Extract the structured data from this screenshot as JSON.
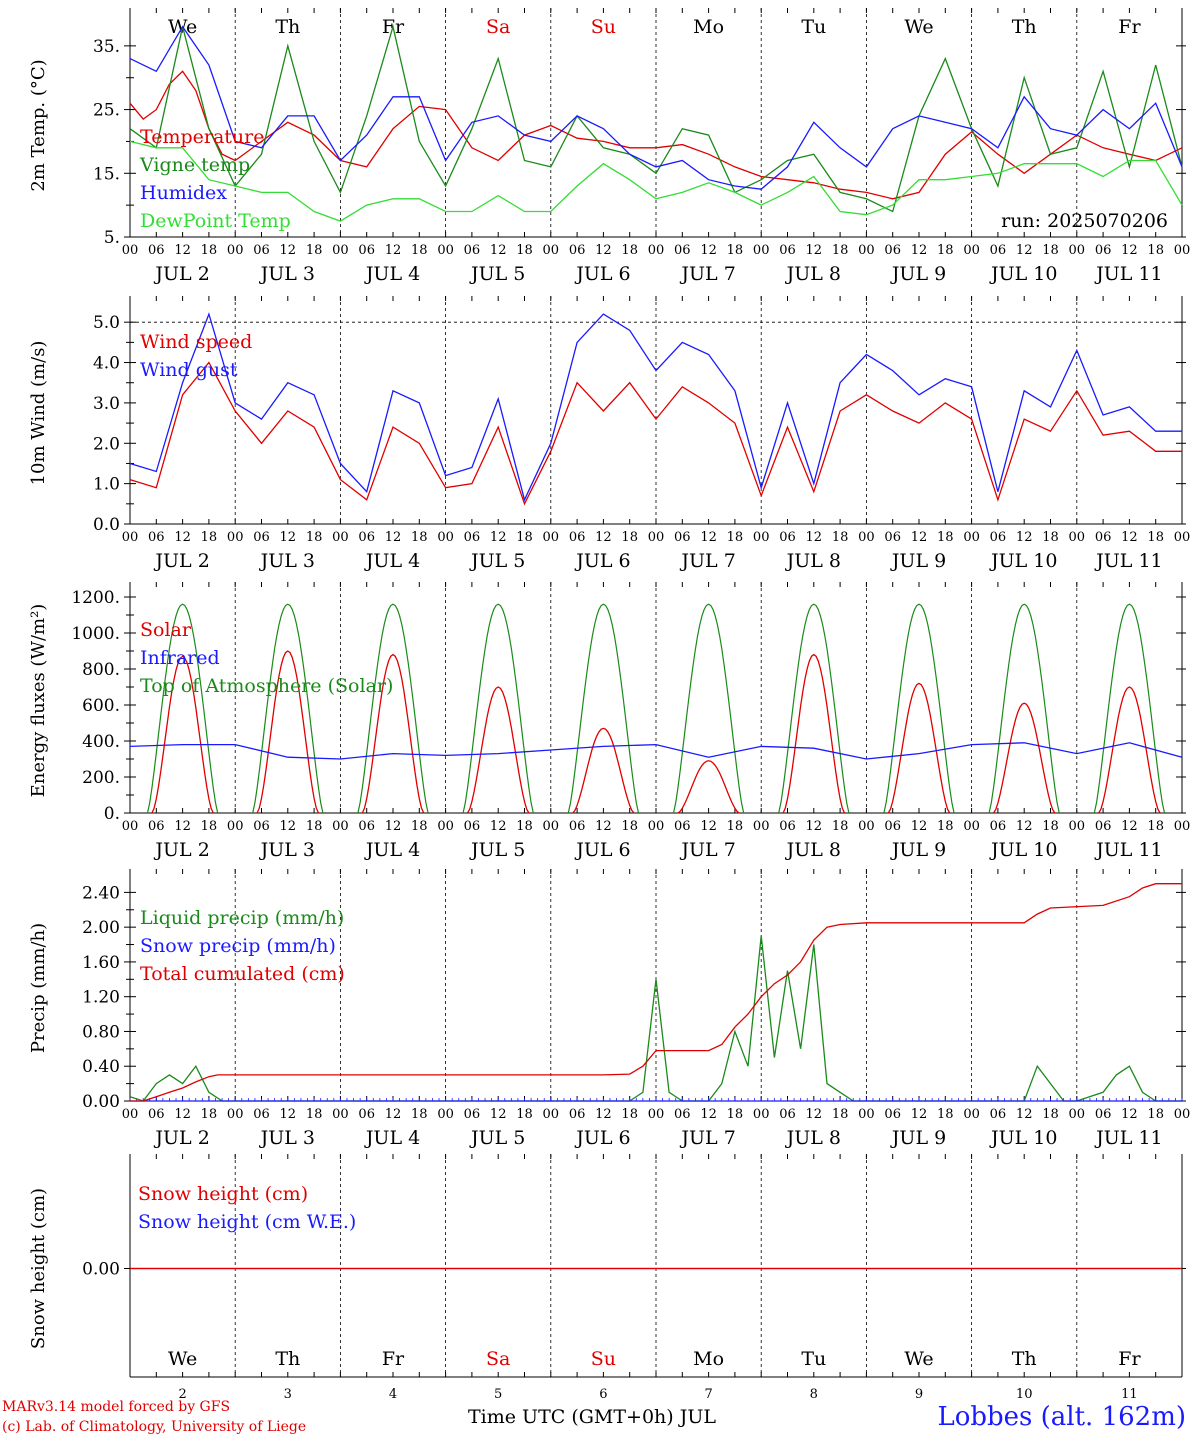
{
  "run_label": "run: 2025070206",
  "footer": {
    "credit_line1": "MARv3.14 model forced by GFS",
    "credit_line2": "(c) Lab. of Climatology, University of Liege",
    "station": "Lobbes (alt. 162m)",
    "time_axis_label": "Time UTC (GMT+0h) JUL"
  },
  "days": [
    {
      "weekday": "We",
      "date_label": "JUL  2",
      "day_number": "2"
    },
    {
      "weekday": "Th",
      "date_label": "JUL  3",
      "day_number": "3"
    },
    {
      "weekday": "Fr",
      "date_label": "JUL  4",
      "day_number": "4"
    },
    {
      "weekday": "Sa",
      "date_label": "JUL  5",
      "day_number": "5"
    },
    {
      "weekday": "Su",
      "date_label": "JUL  6",
      "day_number": "6"
    },
    {
      "weekday": "Mo",
      "date_label": "JUL  7",
      "day_number": "7"
    },
    {
      "weekday": "Tu",
      "date_label": "JUL  8",
      "day_number": "8"
    },
    {
      "weekday": "We",
      "date_label": "JUL  9",
      "day_number": "9"
    },
    {
      "weekday": "Th",
      "date_label": "JUL 10",
      "day_number": "10"
    },
    {
      "weekday": "Fr",
      "date_label": "JUL 11",
      "day_number": "11"
    }
  ],
  "hour_ticks": [
    "00",
    "06",
    "12",
    "18"
  ],
  "colors": {
    "red": "#e00000",
    "green": "#1a8a1a",
    "blue": "#1a1aff",
    "lightgreen": "#33dd33",
    "weekend": "#e00000",
    "text": "#000000"
  },
  "chart_data": [
    {
      "type": "line",
      "ylabel": "2m Temp. (°C)",
      "ylim": [
        5,
        40
      ],
      "yticks": [
        5,
        15,
        25,
        35
      ],
      "ytick_labels": [
        "5.",
        "15.",
        "25.",
        "35."
      ],
      "x_unit": "hours since JUL 2 00 UTC",
      "series": [
        {
          "name": "Temperature",
          "color": "red",
          "x": [
            0,
            3,
            6,
            9,
            12,
            15,
            18,
            21,
            24,
            30,
            36,
            42,
            48,
            54,
            60,
            66,
            72,
            78,
            84,
            90,
            96,
            102,
            108,
            114,
            120,
            126,
            132,
            138,
            144,
            150,
            156,
            162,
            168,
            174,
            180,
            186,
            192,
            198,
            204,
            210,
            216,
            222,
            228,
            234,
            240
          ],
          "y": [
            26,
            23.5,
            25,
            29,
            31,
            28,
            22,
            18,
            17,
            20,
            23,
            21,
            17,
            16,
            22,
            25.5,
            25,
            19,
            17,
            21,
            22.5,
            20.5,
            20,
            19,
            19,
            19.5,
            18,
            16,
            14.5,
            14,
            13.5,
            12.5,
            12,
            11,
            12,
            18,
            21.5,
            18,
            15,
            18,
            21,
            19,
            18,
            17,
            19
          ]
        },
        {
          "name": "Vigne temp",
          "color": "green",
          "x": [
            0,
            6,
            12,
            18,
            24,
            30,
            36,
            42,
            48,
            54,
            60,
            66,
            72,
            78,
            84,
            90,
            96,
            102,
            108,
            114,
            120,
            126,
            132,
            138,
            144,
            150,
            156,
            162,
            168,
            174,
            180,
            186,
            192,
            198,
            204,
            210,
            216,
            222,
            228,
            234,
            240
          ],
          "y": [
            22,
            19,
            38,
            22,
            13,
            18,
            35,
            20,
            12,
            24,
            38,
            20,
            13,
            22,
            33,
            17,
            16,
            24,
            19,
            18,
            15,
            22,
            21,
            12,
            14,
            17,
            18,
            12,
            11,
            9,
            24,
            33,
            22,
            13,
            30,
            18,
            19,
            31,
            16,
            32,
            16
          ]
        },
        {
          "name": "Humidex",
          "color": "blue",
          "x": [
            0,
            6,
            12,
            18,
            24,
            30,
            36,
            42,
            48,
            54,
            60,
            66,
            72,
            78,
            84,
            90,
            96,
            102,
            108,
            114,
            120,
            126,
            132,
            138,
            144,
            150,
            156,
            162,
            168,
            174,
            180,
            186,
            192,
            198,
            204,
            210,
            216,
            222,
            228,
            234,
            240
          ],
          "y": [
            33,
            31,
            38,
            32,
            20,
            19,
            24,
            24,
            17,
            21,
            27,
            27,
            17,
            23,
            24,
            21,
            20,
            24,
            22,
            18,
            16,
            17,
            14,
            13,
            12.5,
            16,
            23,
            19,
            16,
            22,
            24,
            23,
            22,
            19,
            27,
            22,
            21,
            25,
            22,
            26,
            16
          ]
        },
        {
          "name": "DewPoint Temp",
          "color": "lightgreen",
          "x": [
            0,
            6,
            12,
            18,
            24,
            30,
            36,
            42,
            48,
            54,
            60,
            66,
            72,
            78,
            84,
            90,
            96,
            102,
            108,
            114,
            120,
            126,
            132,
            138,
            144,
            150,
            156,
            162,
            168,
            174,
            180,
            186,
            192,
            198,
            204,
            210,
            216,
            222,
            228,
            234,
            240
          ],
          "y": [
            20,
            19,
            19,
            14,
            13,
            12,
            12,
            9,
            7.5,
            10,
            11,
            11,
            9,
            9,
            11.5,
            9,
            9,
            13,
            16.5,
            14,
            11,
            12,
            13.5,
            12,
            10,
            12,
            14.5,
            9,
            8.5,
            10,
            14,
            14,
            14.5,
            15,
            16.5,
            16.5,
            16.5,
            14.5,
            17,
            17,
            10
          ]
        }
      ]
    },
    {
      "type": "line",
      "ylabel": "10m Wind (m/s)",
      "ylim": [
        0,
        5.5
      ],
      "yticks": [
        0,
        1,
        2,
        3,
        4,
        5
      ],
      "ytick_labels": [
        "0.0",
        "1.0",
        "2.0",
        "3.0",
        "4.0",
        "5.0"
      ],
      "reference_line": 5.0,
      "series": [
        {
          "name": "Wind speed",
          "color": "red",
          "x": [
            0,
            6,
            12,
            18,
            24,
            30,
            36,
            42,
            48,
            54,
            60,
            66,
            72,
            78,
            84,
            90,
            96,
            102,
            108,
            114,
            120,
            126,
            132,
            138,
            144,
            150,
            156,
            162,
            168,
            174,
            180,
            186,
            192,
            198,
            204,
            210,
            216,
            222,
            228,
            234,
            240
          ],
          "y": [
            1.1,
            0.9,
            3.2,
            4.0,
            2.8,
            2.0,
            2.8,
            2.4,
            1.1,
            0.6,
            2.4,
            2.0,
            0.9,
            1.0,
            2.4,
            0.5,
            1.8,
            3.5,
            2.8,
            3.5,
            2.6,
            3.4,
            3.0,
            2.5,
            0.7,
            2.4,
            0.8,
            2.8,
            3.2,
            2.8,
            2.5,
            3.0,
            2.6,
            0.6,
            2.6,
            2.3,
            3.3,
            2.2,
            2.3,
            1.8,
            1.8
          ]
        },
        {
          "name": "Wind gust",
          "color": "blue",
          "x": [
            0,
            6,
            12,
            18,
            24,
            30,
            36,
            42,
            48,
            54,
            60,
            66,
            72,
            78,
            84,
            90,
            96,
            102,
            108,
            114,
            120,
            126,
            132,
            138,
            144,
            150,
            156,
            162,
            168,
            174,
            180,
            186,
            192,
            198,
            204,
            210,
            216,
            222,
            228,
            234,
            240
          ],
          "y": [
            1.5,
            1.3,
            3.5,
            5.2,
            3.0,
            2.6,
            3.5,
            3.2,
            1.5,
            0.8,
            3.3,
            3.0,
            1.2,
            1.4,
            3.1,
            0.6,
            2.0,
            4.5,
            5.2,
            4.8,
            3.8,
            4.5,
            4.2,
            3.3,
            0.9,
            3.0,
            1.0,
            3.5,
            4.2,
            3.8,
            3.2,
            3.6,
            3.4,
            0.8,
            3.3,
            2.9,
            4.3,
            2.7,
            2.9,
            2.3,
            2.3
          ]
        }
      ]
    },
    {
      "type": "line",
      "ylabel": "Energy fluxes (W/m²)",
      "ylim": [
        0,
        1250
      ],
      "yticks": [
        0,
        200,
        400,
        600,
        800,
        1000,
        1200
      ],
      "ytick_labels": [
        "0.",
        "200.",
        "400.",
        "600.",
        "800.",
        "1000.",
        "1200."
      ],
      "toa_peak": 1160,
      "solar_daily_peaks": [
        870,
        900,
        880,
        700,
        470,
        290,
        880,
        720,
        610,
        700
      ],
      "series": [
        {
          "name": "Solar",
          "color": "red"
        },
        {
          "name": "Infrared",
          "color": "blue",
          "x": [
            0,
            12,
            24,
            36,
            48,
            60,
            72,
            84,
            96,
            108,
            120,
            132,
            144,
            156,
            168,
            180,
            192,
            204,
            216,
            228,
            240
          ],
          "y": [
            370,
            380,
            380,
            310,
            300,
            330,
            320,
            330,
            350,
            370,
            380,
            310,
            370,
            360,
            300,
            330,
            380,
            390,
            330,
            390,
            310
          ]
        },
        {
          "name": "Top of Atmosphere (Solar)",
          "color": "green"
        }
      ]
    },
    {
      "type": "line",
      "ylabel": "Precip (mm/h)",
      "ylim": [
        0,
        2.6
      ],
      "yticks": [
        0,
        0.4,
        0.8,
        1.2,
        1.6,
        2.0,
        2.4
      ],
      "ytick_labels": [
        "0.00",
        "0.40",
        "0.80",
        "1.20",
        "1.60",
        "2.00",
        "2.40"
      ],
      "series": [
        {
          "name": "Liquid precip (mm/h)",
          "color": "green",
          "x": [
            0,
            3,
            6,
            9,
            12,
            15,
            18,
            21,
            24,
            114,
            117,
            120,
            123,
            126,
            132,
            135,
            138,
            141,
            144,
            147,
            150,
            153,
            156,
            159,
            162,
            165,
            168,
            174,
            204,
            207,
            210,
            213,
            216,
            222,
            225,
            228,
            231,
            234,
            240
          ],
          "y": [
            0.05,
            0,
            0.2,
            0.3,
            0.2,
            0.4,
            0.1,
            0,
            0,
            0,
            0.1,
            1.4,
            0.1,
            0,
            0,
            0.2,
            0.8,
            0.4,
            1.9,
            0.5,
            1.5,
            0.6,
            1.8,
            0.2,
            0.1,
            0,
            0,
            0,
            0,
            0.4,
            0.2,
            0,
            0,
            0.1,
            0.3,
            0.4,
            0.1,
            0,
            0
          ]
        },
        {
          "name": "Snow precip (mm/h)",
          "color": "blue",
          "x": [
            0,
            240
          ],
          "y": [
            0,
            0
          ]
        },
        {
          "name": "Total cumulated (cm)",
          "color": "red",
          "x": [
            0,
            3,
            6,
            9,
            12,
            15,
            18,
            20,
            24,
            108,
            114,
            117,
            120,
            126,
            132,
            135,
            138,
            141,
            144,
            147,
            150,
            153,
            156,
            159,
            162,
            168,
            192,
            204,
            207,
            210,
            222,
            228,
            231,
            234,
            240
          ],
          "y": [
            0,
            0,
            0.05,
            0.1,
            0.15,
            0.22,
            0.28,
            0.3,
            0.3,
            0.3,
            0.31,
            0.4,
            0.58,
            0.58,
            0.58,
            0.65,
            0.85,
            1.0,
            1.2,
            1.35,
            1.45,
            1.6,
            1.85,
            2.0,
            2.03,
            2.05,
            2.05,
            2.05,
            2.15,
            2.22,
            2.25,
            2.35,
            2.45,
            2.5,
            2.5
          ]
        }
      ]
    },
    {
      "type": "line",
      "ylabel": "Snow height (cm)",
      "ylim": [
        -1,
        1
      ],
      "yticks": [
        0
      ],
      "ytick_labels": [
        "0.00"
      ],
      "series": [
        {
          "name": "Snow height (cm)",
          "color": "red",
          "x": [
            0,
            240
          ],
          "y": [
            0,
            0
          ]
        },
        {
          "name": "Snow height (cm W.E.)",
          "color": "blue",
          "x": [
            0,
            240
          ],
          "y": [
            0,
            0
          ]
        }
      ]
    }
  ]
}
